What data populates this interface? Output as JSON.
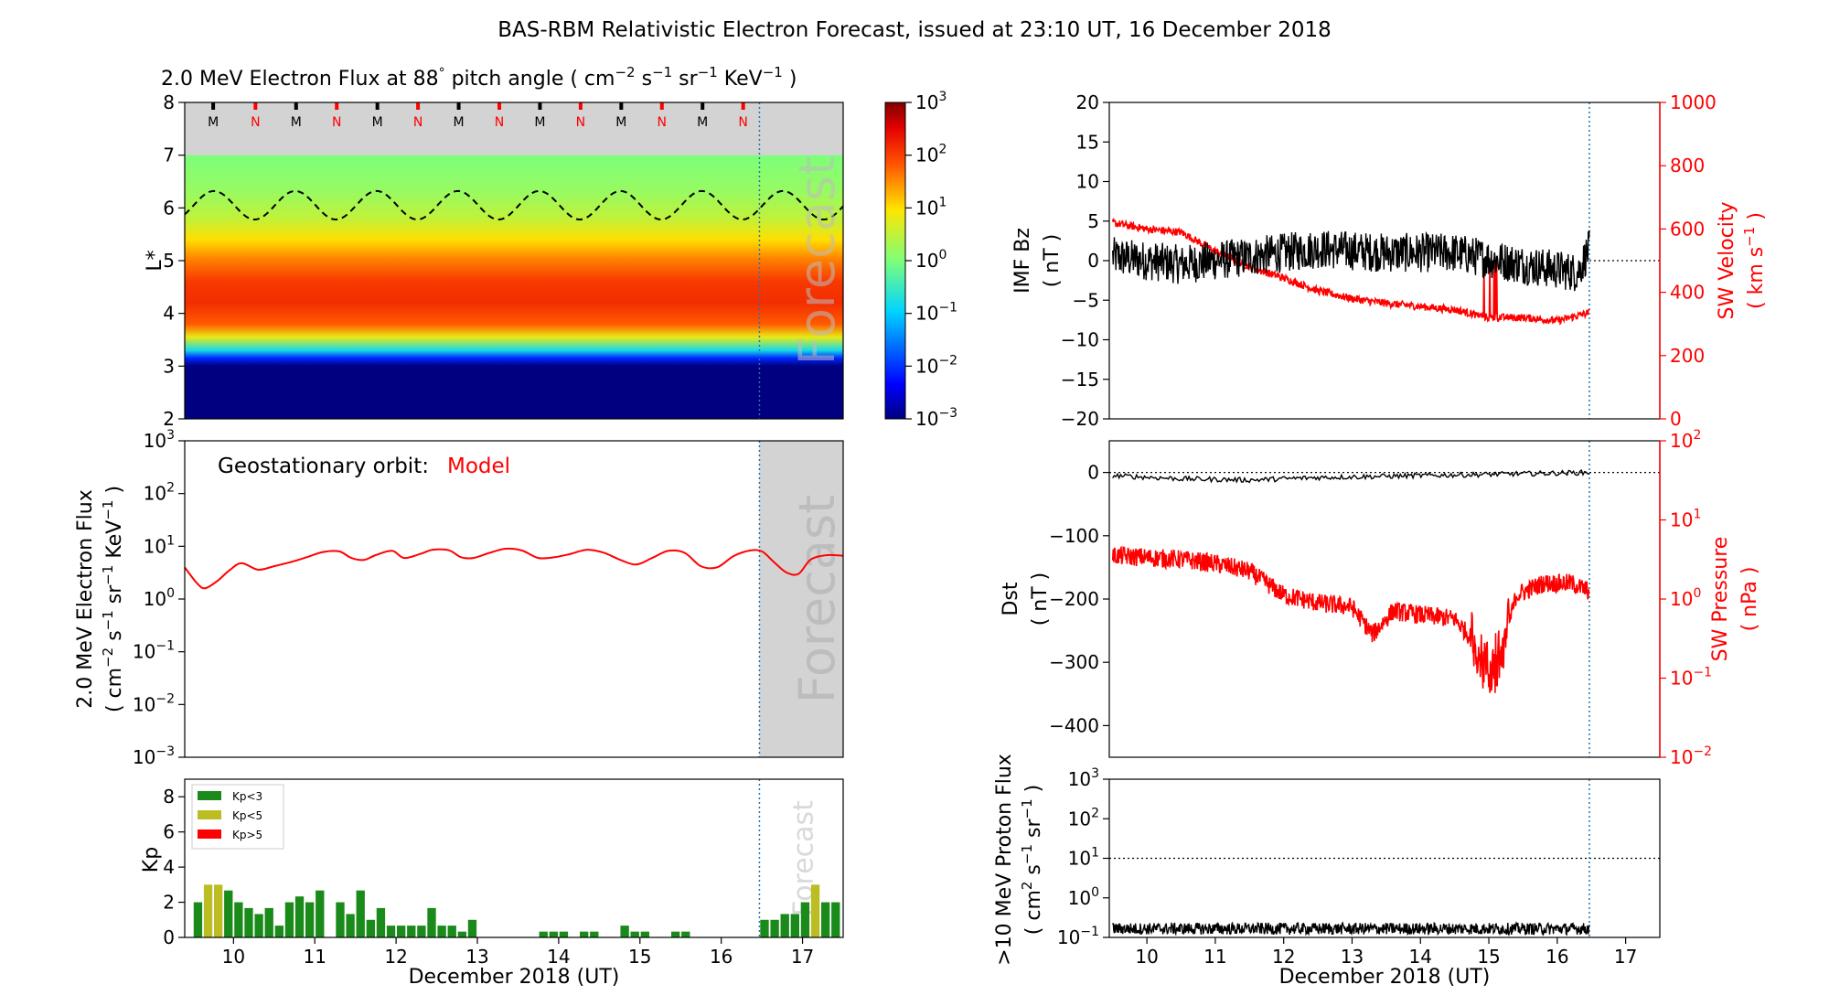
{
  "title": "BAS-RBM Relativistic Electron Forecast, issued at 23:10 UT, 16 December 2018",
  "forecast_label": "Forecast",
  "xlabel": "December 2018 (UT)",
  "x_ticks": [
    "10",
    "11",
    "12",
    "13",
    "14",
    "15",
    "16",
    "17"
  ],
  "x_range": [
    9.4,
    17.5
  ],
  "forecast_start": 16.47,
  "colors": {
    "black": "#000000",
    "red": "#ff0000",
    "kp_green": "#1a8a1a",
    "kp_yellow": "#bcbd22",
    "forecast_grey": "#d3d3d3",
    "dotted_blue": "#1f77b4"
  },
  "chart_data": [
    {
      "id": "flux_map",
      "type": "heatmap",
      "title_parts": {
        "main": "2.0 MeV Electron Flux at 88",
        "deg": "°",
        "mid": " pitch angle ( cm",
        "e1": "−2",
        "s": " s",
        "e2": "−1",
        "sr": " sr",
        "e3": "−1",
        "kev": " KeV",
        "e4": "−1",
        "end": " )"
      },
      "ylabel": "L*",
      "ylim": [
        2,
        8
      ],
      "y_ticks": [
        "2",
        "3",
        "4",
        "5",
        "6",
        "7",
        "8"
      ],
      "colorbar": {
        "range_log10": [
          -3,
          3
        ],
        "ticks": [
          "−3",
          "−2",
          "−1",
          "0",
          "1",
          "2",
          "3"
        ],
        "base": "10"
      },
      "profile_log10": [
        [
          2.0,
          -3
        ],
        [
          3.0,
          -3
        ],
        [
          3.15,
          -2.1
        ],
        [
          3.3,
          -0.8
        ],
        [
          3.55,
          0.8
        ],
        [
          3.8,
          1.8
        ],
        [
          4.2,
          2.15
        ],
        [
          4.6,
          2.05
        ],
        [
          5.0,
          1.6
        ],
        [
          5.4,
          1.0
        ],
        [
          5.8,
          0.5
        ],
        [
          6.3,
          0.2
        ],
        [
          7.0,
          0.0
        ]
      ],
      "markers": [
        {
          "x": 9.75,
          "label": "M"
        },
        {
          "x": 10.27,
          "label": "N"
        },
        {
          "x": 10.77,
          "label": "M"
        },
        {
          "x": 11.27,
          "label": "N"
        },
        {
          "x": 11.77,
          "label": "M"
        },
        {
          "x": 12.27,
          "label": "N"
        },
        {
          "x": 12.77,
          "label": "M"
        },
        {
          "x": 13.27,
          "label": "N"
        },
        {
          "x": 13.77,
          "label": "M"
        },
        {
          "x": 14.27,
          "label": "N"
        },
        {
          "x": 14.77,
          "label": "M"
        },
        {
          "x": 15.27,
          "label": "N"
        },
        {
          "x": 15.77,
          "label": "M"
        },
        {
          "x": 16.27,
          "label": "N"
        }
      ],
      "dashed_line": {
        "mean": 6.05,
        "amplitude": 0.27,
        "period_days": 1.0,
        "peak_x": 9.76
      }
    },
    {
      "id": "geo_flux",
      "type": "line",
      "annotation": "Geostationary orbit:",
      "annotation_model": "Model",
      "ylabel_line1": "2.0 MeV Electron Flux",
      "ylabel_line2": {
        "a": "( cm",
        "e1": "−2",
        "b": " s",
        "e2": "−1",
        "c": " sr",
        "e3": "−1",
        "d": " KeV",
        "e4": "−1",
        "e": " )"
      },
      "ylim_log10": [
        -3,
        3
      ],
      "y_ticks": [
        "−3",
        "−2",
        "−1",
        "0",
        "1",
        "2",
        "3"
      ],
      "series": [
        {
          "color": "#ff0000",
          "x": [
            9.4,
            9.55,
            9.65,
            9.8,
            9.95,
            10.1,
            10.3,
            10.5,
            10.7,
            10.9,
            11.1,
            11.3,
            11.45,
            11.6,
            11.75,
            11.95,
            12.1,
            12.3,
            12.45,
            12.65,
            12.8,
            12.95,
            13.15,
            13.35,
            13.55,
            13.75,
            13.95,
            14.15,
            14.35,
            14.55,
            14.75,
            14.95,
            15.15,
            15.35,
            15.55,
            15.75,
            15.95,
            16.15,
            16.35,
            16.5,
            16.65,
            16.8,
            16.95,
            17.1,
            17.3,
            17.5
          ],
          "y": [
            4.0,
            2.0,
            1.6,
            2.2,
            3.5,
            4.8,
            3.6,
            4.2,
            5.0,
            6.2,
            7.8,
            8.0,
            6.0,
            5.5,
            6.8,
            8.2,
            6.0,
            7.2,
            8.6,
            8.4,
            6.2,
            6.0,
            7.5,
            9.0,
            8.3,
            6.0,
            6.2,
            7.2,
            8.6,
            7.6,
            5.6,
            4.5,
            6.0,
            8.2,
            7.5,
            4.2,
            4.0,
            6.5,
            8.3,
            8.0,
            5.0,
            3.2,
            3.0,
            5.6,
            6.8,
            6.6
          ]
        }
      ]
    },
    {
      "id": "kp",
      "type": "bar",
      "ylabel": "Kp",
      "ylim": [
        0,
        9
      ],
      "y_ticks": [
        "0",
        "2",
        "4",
        "6",
        "8"
      ],
      "legend": [
        {
          "label": "Kp<3",
          "color": "#1a8a1a"
        },
        {
          "label": "Kp<5",
          "color": "#bcbd22"
        },
        {
          "label": "Kp>5",
          "color": "#ff0000"
        }
      ],
      "bar_start": 9.5,
      "bar_width_days": 0.125,
      "values": [
        2.0,
        3.0,
        3.0,
        2.67,
        2.0,
        1.67,
        1.33,
        1.67,
        0.67,
        2.0,
        2.33,
        2.0,
        2.67,
        0,
        2.0,
        1.33,
        2.67,
        1.0,
        1.67,
        0.67,
        0.67,
        0.67,
        0.67,
        1.67,
        0.67,
        0.67,
        0.33,
        1.0,
        0,
        0,
        0,
        0,
        0,
        0,
        0.33,
        0.33,
        0.33,
        0,
        0.33,
        0.33,
        0,
        0,
        0.67,
        0.33,
        0.33,
        0,
        0,
        0.33,
        0.33,
        0,
        0,
        0,
        0,
        0,
        0,
        0,
        0.33,
        0.33,
        0,
        0.33,
        0.33,
        0,
        0,
        0.67,
        0.33,
        0.33,
        0,
        0.33,
        0.67,
        0,
        0,
        0,
        0,
        0,
        0,
        0,
        0,
        0,
        0,
        0,
        0,
        0,
        0,
        0,
        0,
        0,
        0,
        0,
        0,
        0,
        0,
        0,
        0,
        0,
        0,
        0,
        0,
        0,
        0,
        0,
        0,
        0,
        0,
        0,
        0,
        0,
        0,
        0
      ],
      "forecast_values": [
        1.0,
        1.0,
        1.33,
        1.33,
        2.0,
        3.0,
        2.0,
        2.0
      ]
    },
    {
      "id": "imf",
      "type": "line",
      "ylabel_left": [
        "IMF Bz",
        "( nT )"
      ],
      "ylim_left": [
        -20,
        20
      ],
      "y_ticks_left": [
        "−20",
        "−15",
        "−10",
        "−5",
        "0",
        "5",
        "10",
        "15",
        "20"
      ],
      "ylabel_right": "SW Velocity",
      "ylabel_right_units": {
        "a": "( km s",
        "e": "−1",
        "b": " )"
      },
      "ylim_right": [
        0,
        1000
      ],
      "y_ticks_right": [
        "0",
        "200",
        "400",
        "600",
        "800",
        "1000"
      ],
      "series": [
        {
          "name": "IMF Bz",
          "color": "#000000",
          "x_start": 9.5,
          "x_end": 16.47,
          "level": [
            [
              9.5,
              0.5
            ],
            [
              10.5,
              -0.5
            ],
            [
              11.5,
              0.5
            ],
            [
              12.5,
              1.5
            ],
            [
              13.5,
              1.0
            ],
            [
              14.5,
              1.0
            ],
            [
              15.5,
              -0.5
            ],
            [
              16.3,
              -1.5
            ],
            [
              16.47,
              1.5
            ]
          ],
          "noise": 2.5
        },
        {
          "name": "SW Velocity",
          "color": "#ff0000",
          "x_start": 9.5,
          "x_end": 16.47,
          "level": [
            [
              9.5,
              620
            ],
            [
              10.0,
              600
            ],
            [
              10.5,
              590
            ],
            [
              11.0,
              530
            ],
            [
              11.5,
              480
            ],
            [
              12.0,
              445
            ],
            [
              12.5,
              405
            ],
            [
              13.0,
              380
            ],
            [
              13.5,
              365
            ],
            [
              14.0,
              355
            ],
            [
              14.5,
              345
            ],
            [
              14.8,
              330
            ],
            [
              15.0,
              320
            ],
            [
              15.5,
              320
            ],
            [
              16.0,
              310
            ],
            [
              16.47,
              335
            ]
          ],
          "noise": 12
        }
      ]
    },
    {
      "id": "dst",
      "type": "line",
      "ylabel_left": [
        "Dst",
        "( nT )"
      ],
      "ylim_left": [
        -450,
        50
      ],
      "y_ticks_left": [
        "−400",
        "−300",
        "−200",
        "−100",
        "0"
      ],
      "ylabel_right": "SW Pressure",
      "ylabel_right_units": "( nPa )",
      "ylim_right_log10": [
        -2,
        2
      ],
      "y_ticks_right": [
        "−2",
        "−1",
        "0",
        "1",
        "2"
      ],
      "series": [
        {
          "name": "Dst",
          "color": "#000000",
          "x_start": 9.5,
          "x_end": 16.47,
          "level": [
            [
              9.5,
              -5
            ],
            [
              10.5,
              -10
            ],
            [
              11.5,
              -12
            ],
            [
              12.5,
              -8
            ],
            [
              13.5,
              -6
            ],
            [
              14.5,
              -4
            ],
            [
              15.5,
              -2
            ],
            [
              16.47,
              0
            ]
          ],
          "noise": 4
        },
        {
          "name": "SW Pressure",
          "color": "#ff0000",
          "x_start": 9.5,
          "x_end": 16.47,
          "level_log10": [
            [
              9.5,
              0.55
            ],
            [
              10.5,
              0.5
            ],
            [
              11.0,
              0.45
            ],
            [
              11.5,
              0.35
            ],
            [
              12.0,
              0.05
            ],
            [
              12.5,
              -0.05
            ],
            [
              13.0,
              -0.1
            ],
            [
              13.3,
              -0.45
            ],
            [
              13.6,
              -0.15
            ],
            [
              14.0,
              -0.2
            ],
            [
              14.5,
              -0.25
            ],
            [
              14.8,
              -0.55
            ],
            [
              15.0,
              -0.95
            ],
            [
              15.2,
              -0.65
            ],
            [
              15.4,
              0.05
            ],
            [
              15.8,
              0.2
            ],
            [
              16.2,
              0.2
            ],
            [
              16.47,
              0.1
            ]
          ],
          "noise": 0.12
        }
      ]
    },
    {
      "id": "proton",
      "type": "line",
      "ylabel_line1": ">10 MeV Proton Flux",
      "ylabel_line2": {
        "a": "( cm",
        "e1": "2",
        "b": " s",
        "e2": "−1",
        "c": " sr",
        "e3": "−1",
        "d": " )"
      },
      "ylim_log10": [
        -1,
        3
      ],
      "y_ticks": [
        "−1",
        "0",
        "1",
        "2",
        "3"
      ],
      "threshold_log10": 1,
      "series": [
        {
          "name": ">10 MeV Proton Flux",
          "color": "#000000",
          "x_start": 9.5,
          "x_end": 16.47,
          "level_log10": -0.78,
          "noise": 0.15
        }
      ]
    }
  ]
}
